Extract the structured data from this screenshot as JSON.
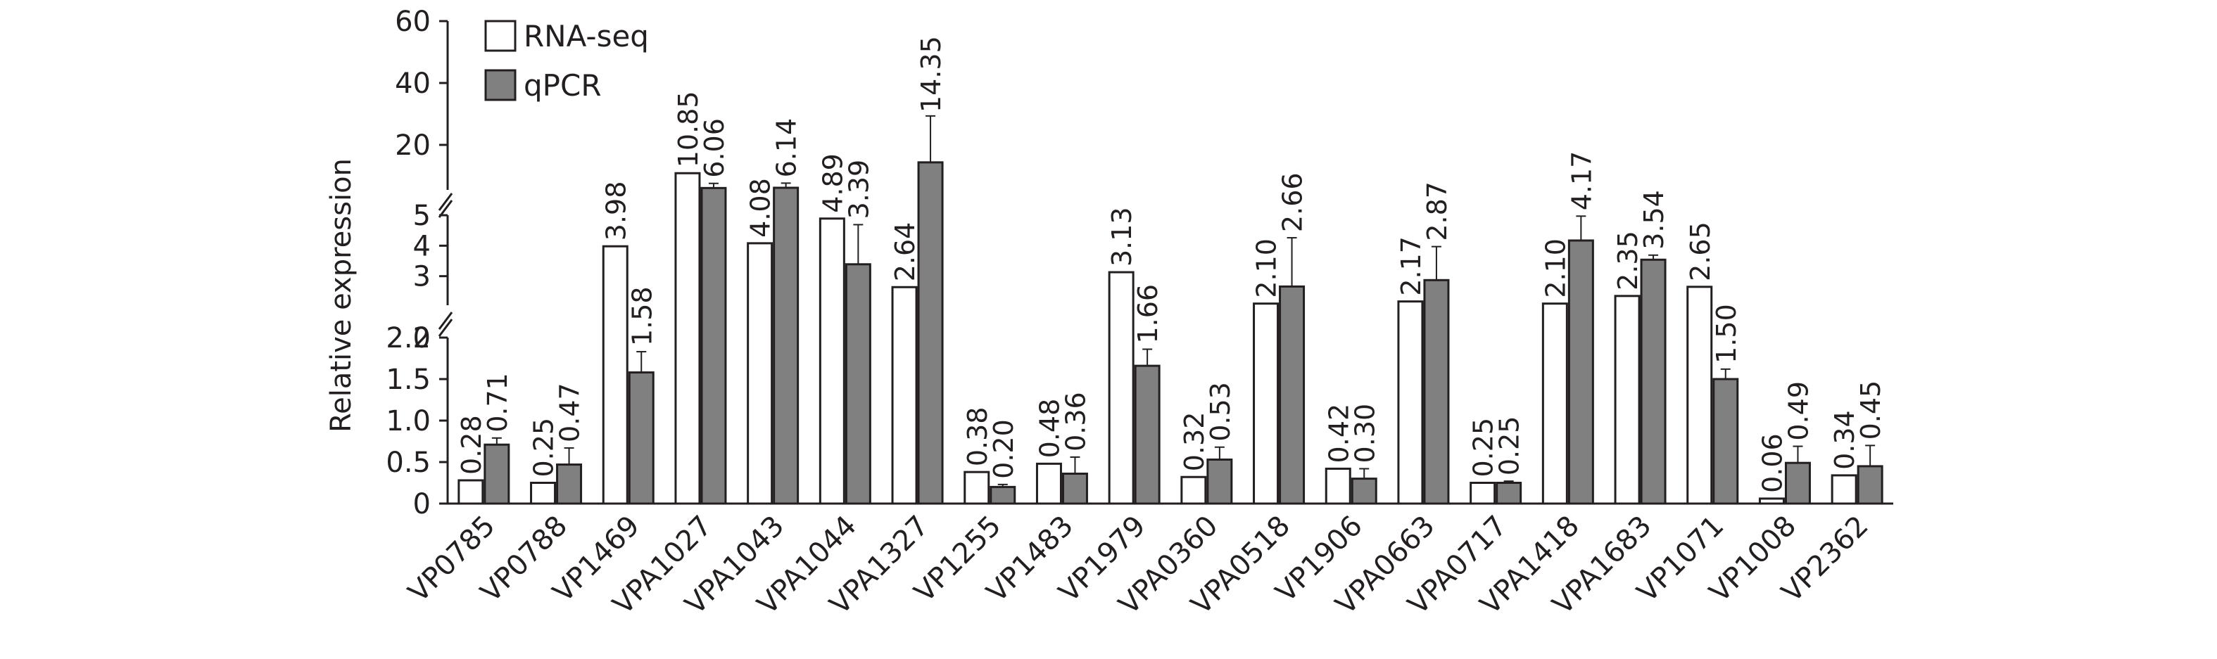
{
  "chart_data": {
    "type": "bar",
    "ylabel": "Relative expression",
    "categories": [
      "VP0785",
      "VP0788",
      "VP1469",
      "VPA1027",
      "VPA1043",
      "VPA1044",
      "VPA1327",
      "VP1255",
      "VP1483",
      "VP1979",
      "VPA0360",
      "VPA0518",
      "VP1906",
      "VPA0663",
      "VPA0717",
      "VPA1418",
      "VPA1683",
      "VP1071",
      "VP1008",
      "VP2362"
    ],
    "series": [
      {
        "name": "RNA-seq",
        "color": "#ffffff",
        "values": [
          0.28,
          0.25,
          3.98,
          10.85,
          4.08,
          4.89,
          2.64,
          0.38,
          0.48,
          3.13,
          0.32,
          2.1,
          0.42,
          2.17,
          0.25,
          2.1,
          2.35,
          2.65,
          0.06,
          0.34
        ],
        "labels": [
          "0.28",
          "0.25",
          "3.98",
          "10.85",
          "4.08",
          "4.89",
          "2.64",
          "0.38",
          "0.48",
          "3.13",
          "0.32",
          "2.10",
          "0.42",
          "2.17",
          "0.25",
          "2.10",
          "2.35",
          "2.65",
          "0.06",
          "0.34"
        ]
      },
      {
        "name": "qPCR",
        "color": "#808080",
        "values": [
          0.71,
          0.47,
          1.58,
          6.06,
          6.14,
          3.39,
          14.35,
          0.2,
          0.36,
          1.66,
          0.53,
          2.66,
          0.3,
          2.87,
          0.25,
          4.17,
          3.54,
          1.5,
          0.49,
          0.45
        ],
        "labels": [
          "0.71",
          "0.47",
          "1.58",
          "6.06",
          "6.14",
          "3.39",
          "14.35",
          "0.20",
          "0.36",
          "1.66",
          "0.53",
          "2.66",
          "0.30",
          "2.87",
          "0.25",
          "4.17",
          "3.54",
          "1.50",
          "0.49",
          "0.45"
        ],
        "error": [
          0.08,
          0.2,
          0.25,
          1.5,
          1.5,
          1.3,
          15,
          0.03,
          0.2,
          0.2,
          0.15,
          1.6,
          0.12,
          1.1,
          0.02,
          0.8,
          0.15,
          0.12,
          0.2,
          0.25
        ]
      }
    ],
    "y_segments": [
      {
        "range": [
          0,
          2
        ],
        "ticks": [
          "0",
          "0.5",
          "1.0",
          "1.5",
          "2.0"
        ]
      },
      {
        "range": [
          2,
          5
        ],
        "ticks": [
          "2",
          "3",
          "4",
          "5"
        ]
      },
      {
        "range": [
          5,
          60
        ],
        "ticks": [
          "20",
          "40",
          "60"
        ]
      }
    ],
    "legend": "top-left"
  }
}
